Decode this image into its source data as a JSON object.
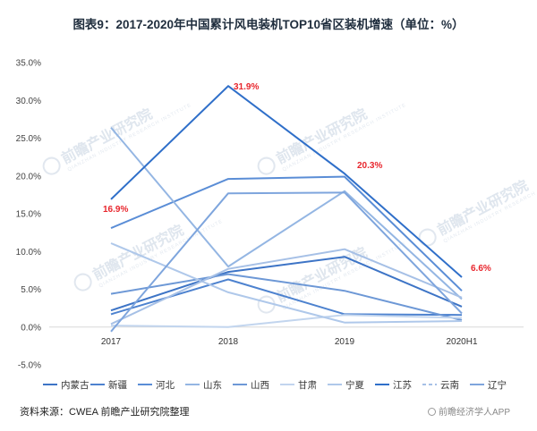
{
  "page": {
    "title": "图表9：2017-2020年中国累计风电装机TOP10省区装机增速（单位：%）",
    "source": "资料来源：CWEA  前瞻产业研究院整理",
    "brand": "前瞻经济学人APP",
    "watermark": "前瞻产业研究院",
    "watermark_sub": "QIANZHAN INDUSTRY RESEARCH INSTITUTE"
  },
  "chart_data": {
    "type": "line",
    "title": "图表9：2017-2020年中国累计风电装机TOP10省区装机增速（单位：%）",
    "categories": [
      "2017",
      "2018",
      "2019",
      "2020H1"
    ],
    "ylim": [
      -5,
      35
    ],
    "yticks": [
      -5,
      0,
      5,
      10,
      15,
      20,
      25,
      30,
      35
    ],
    "ytick_labels": [
      "-5.0%",
      "0.0%",
      "5.0%",
      "10.0%",
      "15.0%",
      "20.0%",
      "25.0%",
      "30.0%",
      "35.0%"
    ],
    "grid": false,
    "legend": "bottom",
    "series": [
      {
        "name": "内蒙古",
        "values": [
          2.2,
          7.3,
          9.3,
          2.7
        ],
        "color": "#3d74c6"
      },
      {
        "name": "新疆",
        "values": [
          1.7,
          6.3,
          1.7,
          1.6
        ],
        "color": "#4d82cf"
      },
      {
        "name": "河北",
        "values": [
          13.1,
          19.6,
          19.9,
          4.8
        ],
        "color": "#5a8dd6"
      },
      {
        "name": "山东",
        "values": [
          26.4,
          8.0,
          18.0,
          3.7
        ],
        "color": "#94b6e3"
      },
      {
        "name": "山西",
        "values": [
          4.4,
          7.0,
          4.8,
          0.9
        ],
        "color": "#6d98d6"
      },
      {
        "name": "甘肃",
        "values": [
          0.2,
          0.0,
          1.6,
          1.2
        ],
        "color": "#c2d5ee"
      },
      {
        "name": "宁夏",
        "values": [
          11.1,
          4.6,
          0.6,
          0.8
        ],
        "color": "#afc8ea"
      },
      {
        "name": "江苏",
        "values": [
          16.9,
          31.9,
          20.3,
          6.6
        ],
        "color": "#2f6fc9"
      },
      {
        "name": "云南",
        "values": [
          0.4,
          7.7,
          10.3,
          3.9
        ],
        "color": "#a6c0e6"
      },
      {
        "name": "辽宁",
        "values": [
          -0.6,
          17.7,
          17.8,
          1.8
        ],
        "color": "#7ea5dd"
      }
    ],
    "annotations": [
      {
        "series": "江苏",
        "category": "2017",
        "text": "16.9%"
      },
      {
        "series": "江苏",
        "category": "2018",
        "text": "31.9%"
      },
      {
        "series": "江苏",
        "category": "2019",
        "text": "20.3%"
      },
      {
        "series": "江苏",
        "category": "2020H1",
        "text": "6.6%"
      }
    ]
  }
}
